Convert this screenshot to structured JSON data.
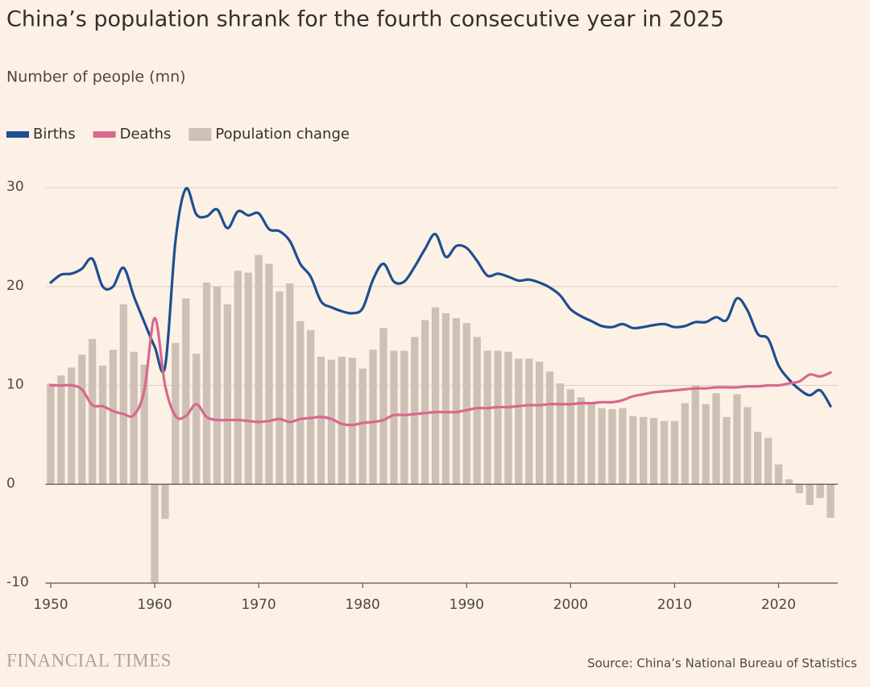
{
  "chart_data": {
    "type": "bar",
    "title": "China’s population shrank for the fourth consecutive year in 2025",
    "subtitle": "Number of people (mn)",
    "source": "Source: China’s National Bureau of Statistics",
    "brand": "FINANCIAL TIMES",
    "legend": "top-left",
    "grid": true,
    "x": [
      1950,
      1951,
      1952,
      1953,
      1954,
      1955,
      1956,
      1957,
      1958,
      1959,
      1960,
      1961,
      1962,
      1963,
      1964,
      1965,
      1966,
      1967,
      1968,
      1969,
      1970,
      1971,
      1972,
      1973,
      1974,
      1975,
      1976,
      1977,
      1978,
      1979,
      1980,
      1981,
      1982,
      1983,
      1984,
      1985,
      1986,
      1987,
      1988,
      1989,
      1990,
      1991,
      1992,
      1993,
      1994,
      1995,
      1996,
      1997,
      1998,
      1999,
      2000,
      2001,
      2002,
      2003,
      2004,
      2005,
      2006,
      2007,
      2008,
      2009,
      2010,
      2011,
      2012,
      2013,
      2014,
      2015,
      2016,
      2017,
      2018,
      2019,
      2020,
      2021,
      2022,
      2023,
      2024,
      2025
    ],
    "xlim": [
      1949.5,
      2025.5
    ],
    "xticks": [
      1950,
      1960,
      1970,
      1980,
      1990,
      2000,
      2010,
      2020
    ],
    "ylim": [
      -10,
      30
    ],
    "yticks": [
      -10,
      0,
      10,
      20,
      30
    ],
    "series": [
      {
        "name": "Births",
        "type": "line",
        "color": "#1d4f91",
        "values": [
          20.4,
          21.2,
          21.3,
          21.8,
          22.8,
          20.0,
          20.0,
          21.9,
          19.0,
          16.4,
          13.9,
          11.9,
          24.6,
          29.9,
          27.3,
          27.1,
          27.8,
          25.9,
          27.6,
          27.2,
          27.4,
          25.8,
          25.6,
          24.6,
          22.3,
          21.0,
          18.5,
          17.9,
          17.5,
          17.3,
          17.8,
          20.7,
          22.3,
          20.5,
          20.5,
          22.0,
          23.8,
          25.3,
          23.0,
          24.1,
          23.9,
          22.6,
          21.1,
          21.3,
          21.0,
          20.6,
          20.7,
          20.4,
          19.9,
          19.1,
          17.7,
          17.0,
          16.5,
          16.0,
          15.9,
          16.2,
          15.8,
          15.9,
          16.1,
          16.2,
          15.9,
          16.0,
          16.4,
          16.4,
          16.9,
          16.6,
          18.8,
          17.6,
          15.2,
          14.7,
          12.0,
          10.6,
          9.6,
          9.0,
          9.5,
          7.9
        ]
      },
      {
        "name": "Deaths",
        "type": "line",
        "color": "#d8688e",
        "values": [
          10.0,
          10.0,
          10.0,
          9.6,
          8.0,
          7.9,
          7.4,
          7.1,
          7.0,
          9.5,
          16.8,
          10.0,
          6.9,
          6.9,
          8.1,
          6.8,
          6.5,
          6.5,
          6.5,
          6.4,
          6.3,
          6.4,
          6.6,
          6.3,
          6.6,
          6.7,
          6.8,
          6.6,
          6.1,
          6.0,
          6.2,
          6.3,
          6.5,
          7.0,
          7.0,
          7.1,
          7.2,
          7.3,
          7.3,
          7.3,
          7.5,
          7.7,
          7.7,
          7.8,
          7.8,
          7.9,
          8.0,
          8.0,
          8.1,
          8.1,
          8.1,
          8.2,
          8.2,
          8.3,
          8.3,
          8.5,
          8.9,
          9.1,
          9.3,
          9.4,
          9.5,
          9.6,
          9.7,
          9.7,
          9.8,
          9.8,
          9.8,
          9.9,
          9.9,
          10.0,
          10.0,
          10.2,
          10.4,
          11.1,
          10.9,
          11.3
        ]
      },
      {
        "name": "Population change",
        "type": "bar",
        "color": "#cdc1b7",
        "values": [
          10.2,
          11.0,
          11.8,
          13.1,
          14.7,
          12.0,
          13.6,
          18.2,
          13.4,
          12.1,
          -10.0,
          -3.5,
          14.3,
          18.8,
          13.2,
          20.4,
          20.0,
          18.2,
          21.6,
          21.4,
          23.2,
          22.3,
          19.5,
          20.3,
          16.5,
          15.6,
          12.9,
          12.6,
          12.9,
          12.8,
          11.7,
          13.6,
          15.8,
          13.5,
          13.5,
          14.9,
          16.6,
          17.9,
          17.3,
          16.8,
          16.3,
          14.9,
          13.5,
          13.5,
          13.4,
          12.7,
          12.7,
          12.4,
          11.4,
          10.2,
          9.6,
          8.8,
          8.3,
          7.7,
          7.6,
          7.7,
          6.9,
          6.8,
          6.7,
          6.4,
          6.4,
          8.2,
          10.0,
          8.1,
          9.2,
          6.8,
          9.1,
          7.8,
          5.3,
          4.7,
          2.0,
          0.5,
          -0.9,
          -2.1,
          -1.4,
          -3.4
        ]
      }
    ]
  }
}
